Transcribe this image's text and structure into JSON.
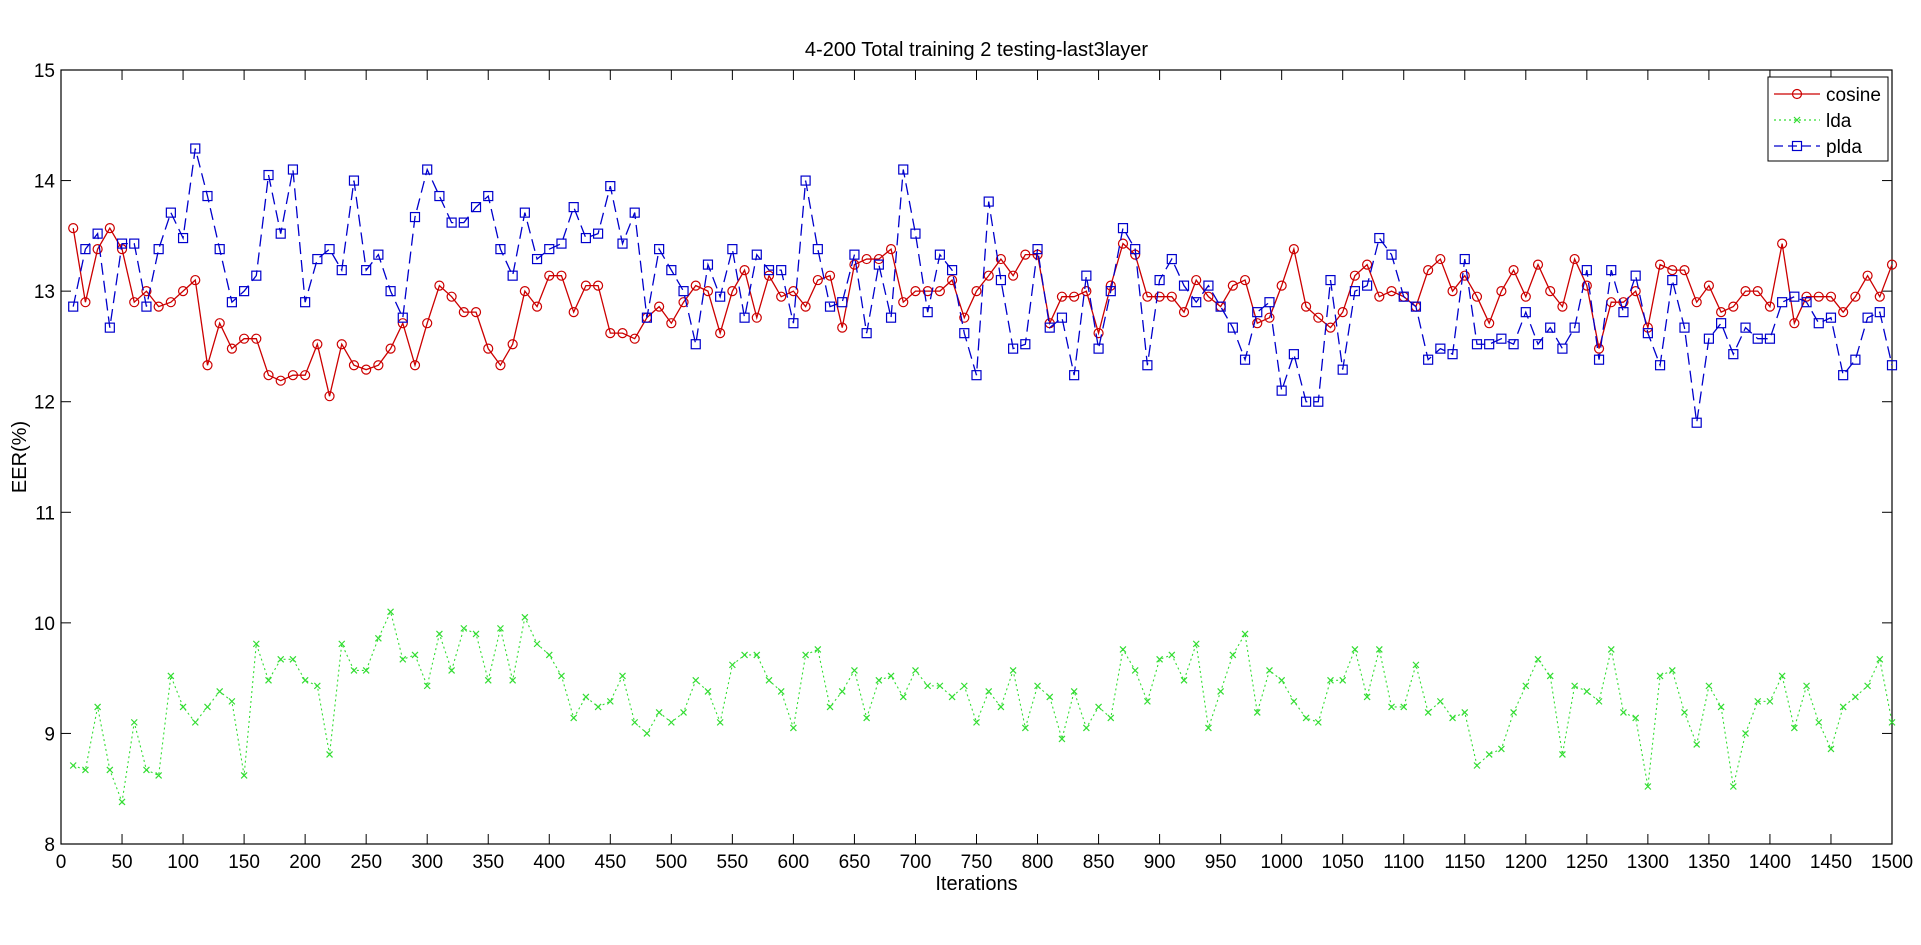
{
  "chart_data": {
    "type": "line",
    "title": "4-200 Total training 2 testing-last3layer",
    "xlabel": "Iterations",
    "ylabel": "EER(%)",
    "xlim": [
      0,
      1500
    ],
    "ylim": [
      8,
      15
    ],
    "xticks": [
      0,
      50,
      100,
      150,
      200,
      250,
      300,
      350,
      400,
      450,
      500,
      550,
      600,
      650,
      700,
      750,
      800,
      850,
      900,
      950,
      1000,
      1050,
      1100,
      1150,
      1200,
      1250,
      1300,
      1350,
      1400,
      1450,
      1500
    ],
    "yticks": [
      8,
      9,
      10,
      11,
      12,
      13,
      14,
      15
    ],
    "grid": false,
    "legend_position": "top-right",
    "x": [
      10,
      20,
      30,
      40,
      50,
      60,
      70,
      80,
      90,
      100,
      110,
      120,
      130,
      140,
      150,
      160,
      170,
      180,
      190,
      200,
      210,
      220,
      230,
      240,
      250,
      260,
      270,
      280,
      290,
      300,
      310,
      320,
      330,
      340,
      350,
      360,
      370,
      380,
      390,
      400,
      410,
      420,
      430,
      440,
      450,
      460,
      470,
      480,
      490,
      500,
      510,
      520,
      530,
      540,
      550,
      560,
      570,
      580,
      590,
      600,
      610,
      620,
      630,
      640,
      650,
      660,
      670,
      680,
      690,
      700,
      710,
      720,
      730,
      740,
      750,
      760,
      770,
      780,
      790,
      800,
      810,
      820,
      830,
      840,
      850,
      860,
      870,
      880,
      890,
      900,
      910,
      920,
      930,
      940,
      950,
      960,
      970,
      980,
      990,
      1000,
      1010,
      1020,
      1030,
      1040,
      1050,
      1060,
      1070,
      1080,
      1090,
      1100,
      1110,
      1120,
      1130,
      1140,
      1150,
      1160,
      1170,
      1180,
      1190,
      1200,
      1210,
      1220,
      1230,
      1240,
      1250,
      1260,
      1270,
      1280,
      1290,
      1300,
      1310,
      1320,
      1330,
      1340,
      1350,
      1360,
      1370,
      1380,
      1390,
      1400,
      1410,
      1420,
      1430,
      1440,
      1450,
      1460,
      1470,
      1480,
      1490,
      1500
    ],
    "series": [
      {
        "name": "cosine",
        "color": "#cc0000",
        "marker": "circle",
        "line_style": "solid",
        "values": [
          13.57,
          12.9,
          13.38,
          13.57,
          13.38,
          12.9,
          13.0,
          12.86,
          12.9,
          13.0,
          13.1,
          12.33,
          12.71,
          12.48,
          12.57,
          12.57,
          12.24,
          12.19,
          12.24,
          12.24,
          12.52,
          12.05,
          12.52,
          12.33,
          12.29,
          12.33,
          12.48,
          12.71,
          12.33,
          12.71,
          13.05,
          12.95,
          12.81,
          12.81,
          12.48,
          12.33,
          12.52,
          13.0,
          12.86,
          13.14,
          13.14,
          12.81,
          13.05,
          13.05,
          12.62,
          12.62,
          12.57,
          12.76,
          12.86,
          12.71,
          12.9,
          13.05,
          13.0,
          12.62,
          13.0,
          13.19,
          12.76,
          13.14,
          12.95,
          13.0,
          12.86,
          13.1,
          13.14,
          12.67,
          13.24,
          13.29,
          13.29,
          13.38,
          12.9,
          13.0,
          13.0,
          13.0,
          13.1,
          12.76,
          13.0,
          13.14,
          13.29,
          13.14,
          13.33,
          13.33,
          12.71,
          12.95,
          12.95,
          13.0,
          12.62,
          13.05,
          13.43,
          13.33,
          12.95,
          12.95,
          12.95,
          12.81,
          13.1,
          12.95,
          12.86,
          13.05,
          13.1,
          12.71,
          12.76,
          13.05,
          13.38,
          12.86,
          12.76,
          12.67,
          12.81,
          13.14,
          13.24,
          12.95,
          13.0,
          12.95,
          12.86,
          13.19,
          13.29,
          13.0,
          13.14,
          12.95,
          12.71,
          13.0,
          13.19,
          12.95,
          13.24,
          13.0,
          12.86,
          13.29,
          13.05,
          12.48,
          12.9,
          12.9,
          13.0,
          12.67,
          13.24,
          13.19,
          13.19,
          12.9,
          13.05,
          12.81,
          12.86,
          13.0,
          13.0,
          12.86,
          13.43,
          12.71,
          12.95,
          12.95,
          12.95,
          12.81,
          12.95,
          13.14,
          12.95,
          13.24
        ]
      },
      {
        "name": "lda",
        "color": "#33dd33",
        "marker": "x",
        "line_style": "dotted",
        "values": [
          8.71,
          8.67,
          9.24,
          8.67,
          8.38,
          9.1,
          8.67,
          8.62,
          9.52,
          9.24,
          9.1,
          9.24,
          9.38,
          9.29,
          8.62,
          9.81,
          9.48,
          9.67,
          9.67,
          9.48,
          9.43,
          8.81,
          9.81,
          9.57,
          9.57,
          9.86,
          10.1,
          9.67,
          9.71,
          9.43,
          9.9,
          9.57,
          9.95,
          9.9,
          9.48,
          9.95,
          9.48,
          10.05,
          9.81,
          9.71,
          9.52,
          9.14,
          9.33,
          9.24,
          9.29,
          9.52,
          9.1,
          9.0,
          9.19,
          9.1,
          9.19,
          9.48,
          9.38,
          9.1,
          9.62,
          9.71,
          9.71,
          9.48,
          9.38,
          9.05,
          9.71,
          9.76,
          9.24,
          9.38,
          9.57,
          9.14,
          9.48,
          9.52,
          9.33,
          9.57,
          9.43,
          9.43,
          9.33,
          9.43,
          9.1,
          9.38,
          9.24,
          9.57,
          9.05,
          9.43,
          9.33,
          8.95,
          9.38,
          9.05,
          9.24,
          9.14,
          9.76,
          9.57,
          9.29,
          9.67,
          9.71,
          9.48,
          9.81,
          9.05,
          9.38,
          9.71,
          9.9,
          9.19,
          9.57,
          9.48,
          9.29,
          9.14,
          9.1,
          9.48,
          9.48,
          9.76,
          9.33,
          9.76,
          9.24,
          9.24,
          9.62,
          9.19,
          9.29,
          9.14,
          9.19,
          8.71,
          8.81,
          8.86,
          9.19,
          9.43,
          9.67,
          9.52,
          8.81,
          9.43,
          9.38,
          9.29,
          9.76,
          9.19,
          9.14,
          8.52,
          9.52,
          9.57,
          9.19,
          8.9,
          9.43,
          9.24,
          8.52,
          9.0,
          9.29,
          9.29,
          9.52,
          9.05,
          9.43,
          9.1,
          8.86,
          9.24,
          9.33,
          9.43,
          9.67,
          9.1
        ]
      },
      {
        "name": "plda",
        "color": "#0000cc",
        "marker": "square",
        "line_style": "dashed",
        "values": [
          12.86,
          13.38,
          13.52,
          12.67,
          13.43,
          13.43,
          12.86,
          13.38,
          13.71,
          13.48,
          14.29,
          13.86,
          13.38,
          12.9,
          13.0,
          13.14,
          14.05,
          13.52,
          14.1,
          12.9,
          13.29,
          13.38,
          13.19,
          14.0,
          13.19,
          13.33,
          13.0,
          12.76,
          13.67,
          14.1,
          13.86,
          13.62,
          13.62,
          13.76,
          13.86,
          13.38,
          13.14,
          13.71,
          13.29,
          13.38,
          13.43,
          13.76,
          13.48,
          13.52,
          13.95,
          13.43,
          13.71,
          12.76,
          13.38,
          13.19,
          13.0,
          12.52,
          13.24,
          12.95,
          13.38,
          12.76,
          13.33,
          13.19,
          13.19,
          12.71,
          14.0,
          13.38,
          12.86,
          12.9,
          13.33,
          12.62,
          13.24,
          12.76,
          14.1,
          13.52,
          12.81,
          13.33,
          13.19,
          12.62,
          12.24,
          13.81,
          13.1,
          12.48,
          12.52,
          13.38,
          12.67,
          12.76,
          12.24,
          13.14,
          12.48,
          13.0,
          13.57,
          13.38,
          12.33,
          13.1,
          13.29,
          13.05,
          12.9,
          13.05,
          12.86,
          12.67,
          12.38,
          12.81,
          12.9,
          12.1,
          12.43,
          12.0,
          12.0,
          13.1,
          12.29,
          13.0,
          13.05,
          13.48,
          13.33,
          12.95,
          12.86,
          12.38,
          12.48,
          12.43,
          13.29,
          12.52,
          12.52,
          12.57,
          12.52,
          12.81,
          12.52,
          12.67,
          12.48,
          12.67,
          13.19,
          12.38,
          13.19,
          12.81,
          13.14,
          12.62,
          12.33,
          13.1,
          12.67,
          11.81,
          12.57,
          12.71,
          12.43,
          12.67,
          12.57,
          12.57,
          12.9,
          12.95,
          12.9,
          12.71,
          12.76,
          12.24,
          12.38,
          12.76,
          12.81,
          12.33
        ]
      }
    ]
  }
}
